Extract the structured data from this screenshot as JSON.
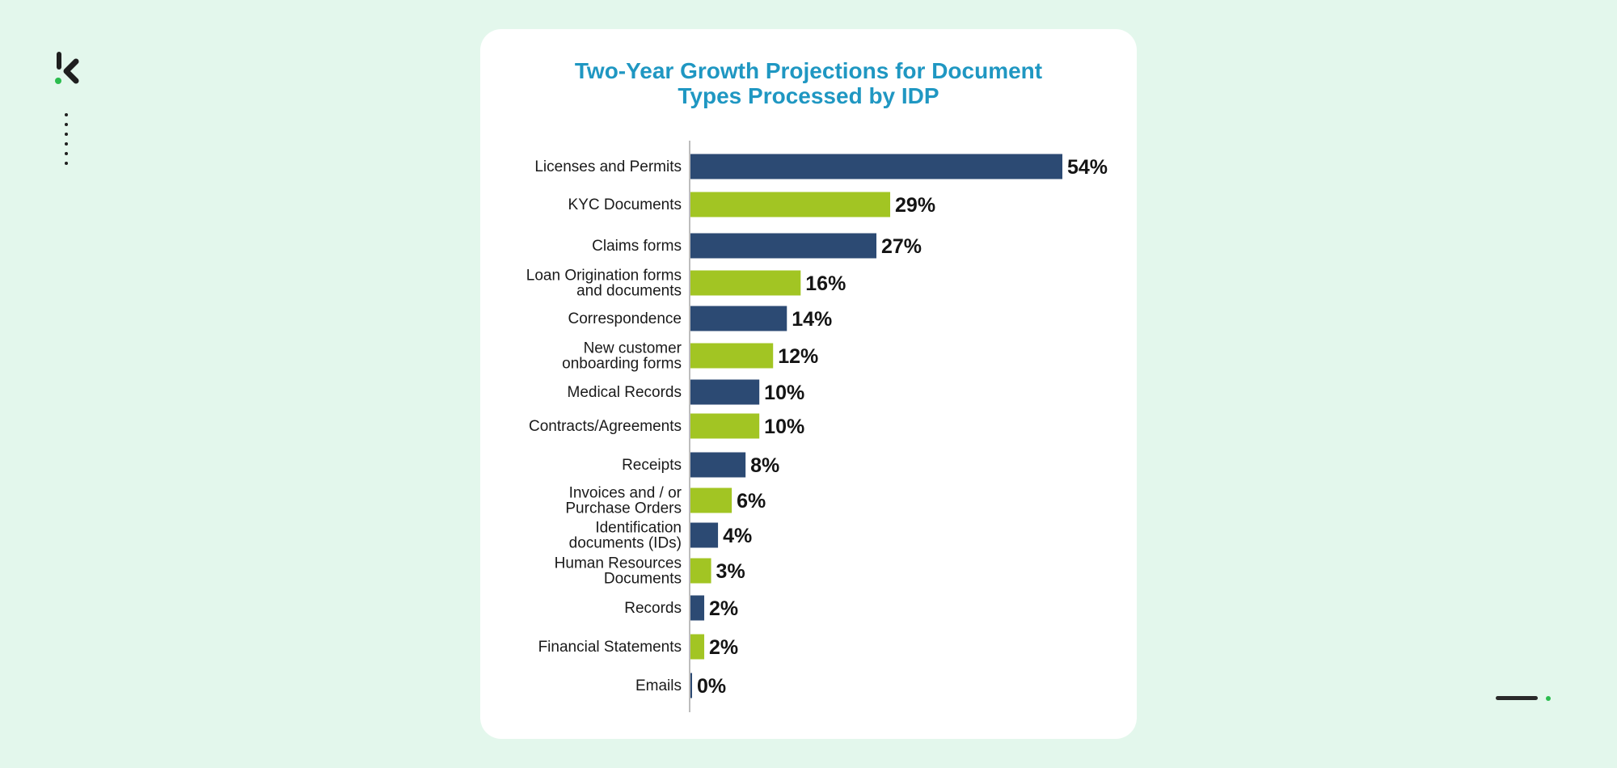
{
  "brand": {
    "logo_icon": "k-chevron-logo",
    "accent": "#2bbd4e",
    "dark": "#1f1f1f"
  },
  "chart_data": {
    "type": "bar",
    "orientation": "horizontal",
    "title_lines": [
      "Two-Year Growth Projections for Document",
      "Types Processed by IDP"
    ],
    "categories": [
      [
        "Licenses and Permits"
      ],
      [
        "KYC Documents"
      ],
      [
        "Claims forms"
      ],
      [
        "Loan Origination forms",
        "and documents"
      ],
      [
        "Correspondence"
      ],
      [
        "New customer",
        "onboarding forms"
      ],
      [
        "Medical Records"
      ],
      [
        "Contracts/Agreements"
      ],
      [
        "Receipts"
      ],
      [
        "Invoices and / or",
        "Purchase Orders"
      ],
      [
        "Identification",
        "documents (IDs)"
      ],
      [
        "Human Resources",
        "Documents"
      ],
      [
        "Records"
      ],
      [
        "Financial Statements"
      ],
      [
        "Emails"
      ]
    ],
    "values": [
      54,
      29,
      27,
      16,
      14,
      12,
      10,
      10,
      8,
      6,
      4,
      3,
      2,
      2,
      0
    ],
    "value_labels": [
      "54%",
      "29%",
      "27%",
      "16%",
      "14%",
      "12%",
      "10%",
      "10%",
      "8%",
      "6%",
      "4%",
      "3%",
      "2%",
      "2%",
      "0%"
    ],
    "colors": [
      "#2c4a73",
      "#a2c523"
    ],
    "color_pattern": "alternating",
    "xlim": [
      0,
      54
    ],
    "grid": false,
    "legend": "none"
  }
}
